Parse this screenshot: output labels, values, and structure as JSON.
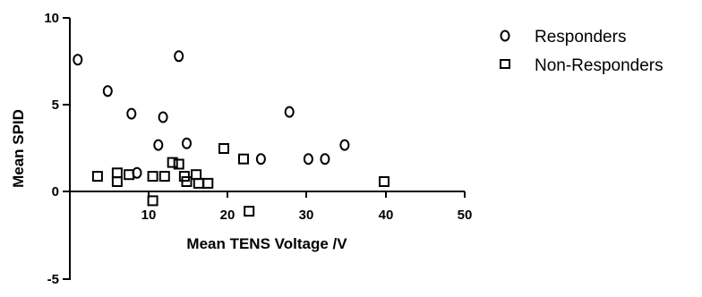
{
  "chart_data": {
    "type": "scatter",
    "xlabel": "Mean TENS Voltage /V",
    "ylabel": "Mean SPID",
    "xlim": [
      0,
      50
    ],
    "ylim": [
      -5,
      10
    ],
    "x_ticks": [
      "10",
      "20",
      "30",
      "40",
      "50"
    ],
    "y_ticks": [
      "10",
      "5",
      "0",
      "-5"
    ],
    "grid": false,
    "legend_position": "right",
    "series": [
      {
        "name": "Responders",
        "marker": "circle",
        "color": "#000000",
        "points": [
          {
            "x": 1.0,
            "y": 7.6
          },
          {
            "x": 4.8,
            "y": 5.8
          },
          {
            "x": 7.8,
            "y": 4.5
          },
          {
            "x": 13.8,
            "y": 7.8
          },
          {
            "x": 11.8,
            "y": 4.3
          },
          {
            "x": 11.2,
            "y": 2.7
          },
          {
            "x": 14.8,
            "y": 2.8
          },
          {
            "x": 8.5,
            "y": 1.1
          },
          {
            "x": 24.2,
            "y": 1.9
          },
          {
            "x": 27.8,
            "y": 4.6
          },
          {
            "x": 30.2,
            "y": 1.9
          },
          {
            "x": 32.3,
            "y": 1.9
          },
          {
            "x": 34.8,
            "y": 2.7
          }
        ]
      },
      {
        "name": "Non-Responders",
        "marker": "square",
        "color": "#000000",
        "points": [
          {
            "x": 3.5,
            "y": 0.9
          },
          {
            "x": 6.0,
            "y": 1.1
          },
          {
            "x": 6.0,
            "y": 0.6
          },
          {
            "x": 7.5,
            "y": 1.0
          },
          {
            "x": 10.5,
            "y": 0.9
          },
          {
            "x": 12.0,
            "y": 0.9
          },
          {
            "x": 13.0,
            "y": 1.7
          },
          {
            "x": 13.8,
            "y": 1.6
          },
          {
            "x": 14.5,
            "y": 0.9
          },
          {
            "x": 14.8,
            "y": 0.6
          },
          {
            "x": 16.0,
            "y": 1.0
          },
          {
            "x": 16.3,
            "y": 0.5
          },
          {
            "x": 17.5,
            "y": 0.5
          },
          {
            "x": 10.5,
            "y": -0.5
          },
          {
            "x": 19.5,
            "y": 2.5
          },
          {
            "x": 22.0,
            "y": 1.9
          },
          {
            "x": 22.7,
            "y": -1.1
          },
          {
            "x": 39.8,
            "y": 0.6
          }
        ]
      }
    ]
  }
}
